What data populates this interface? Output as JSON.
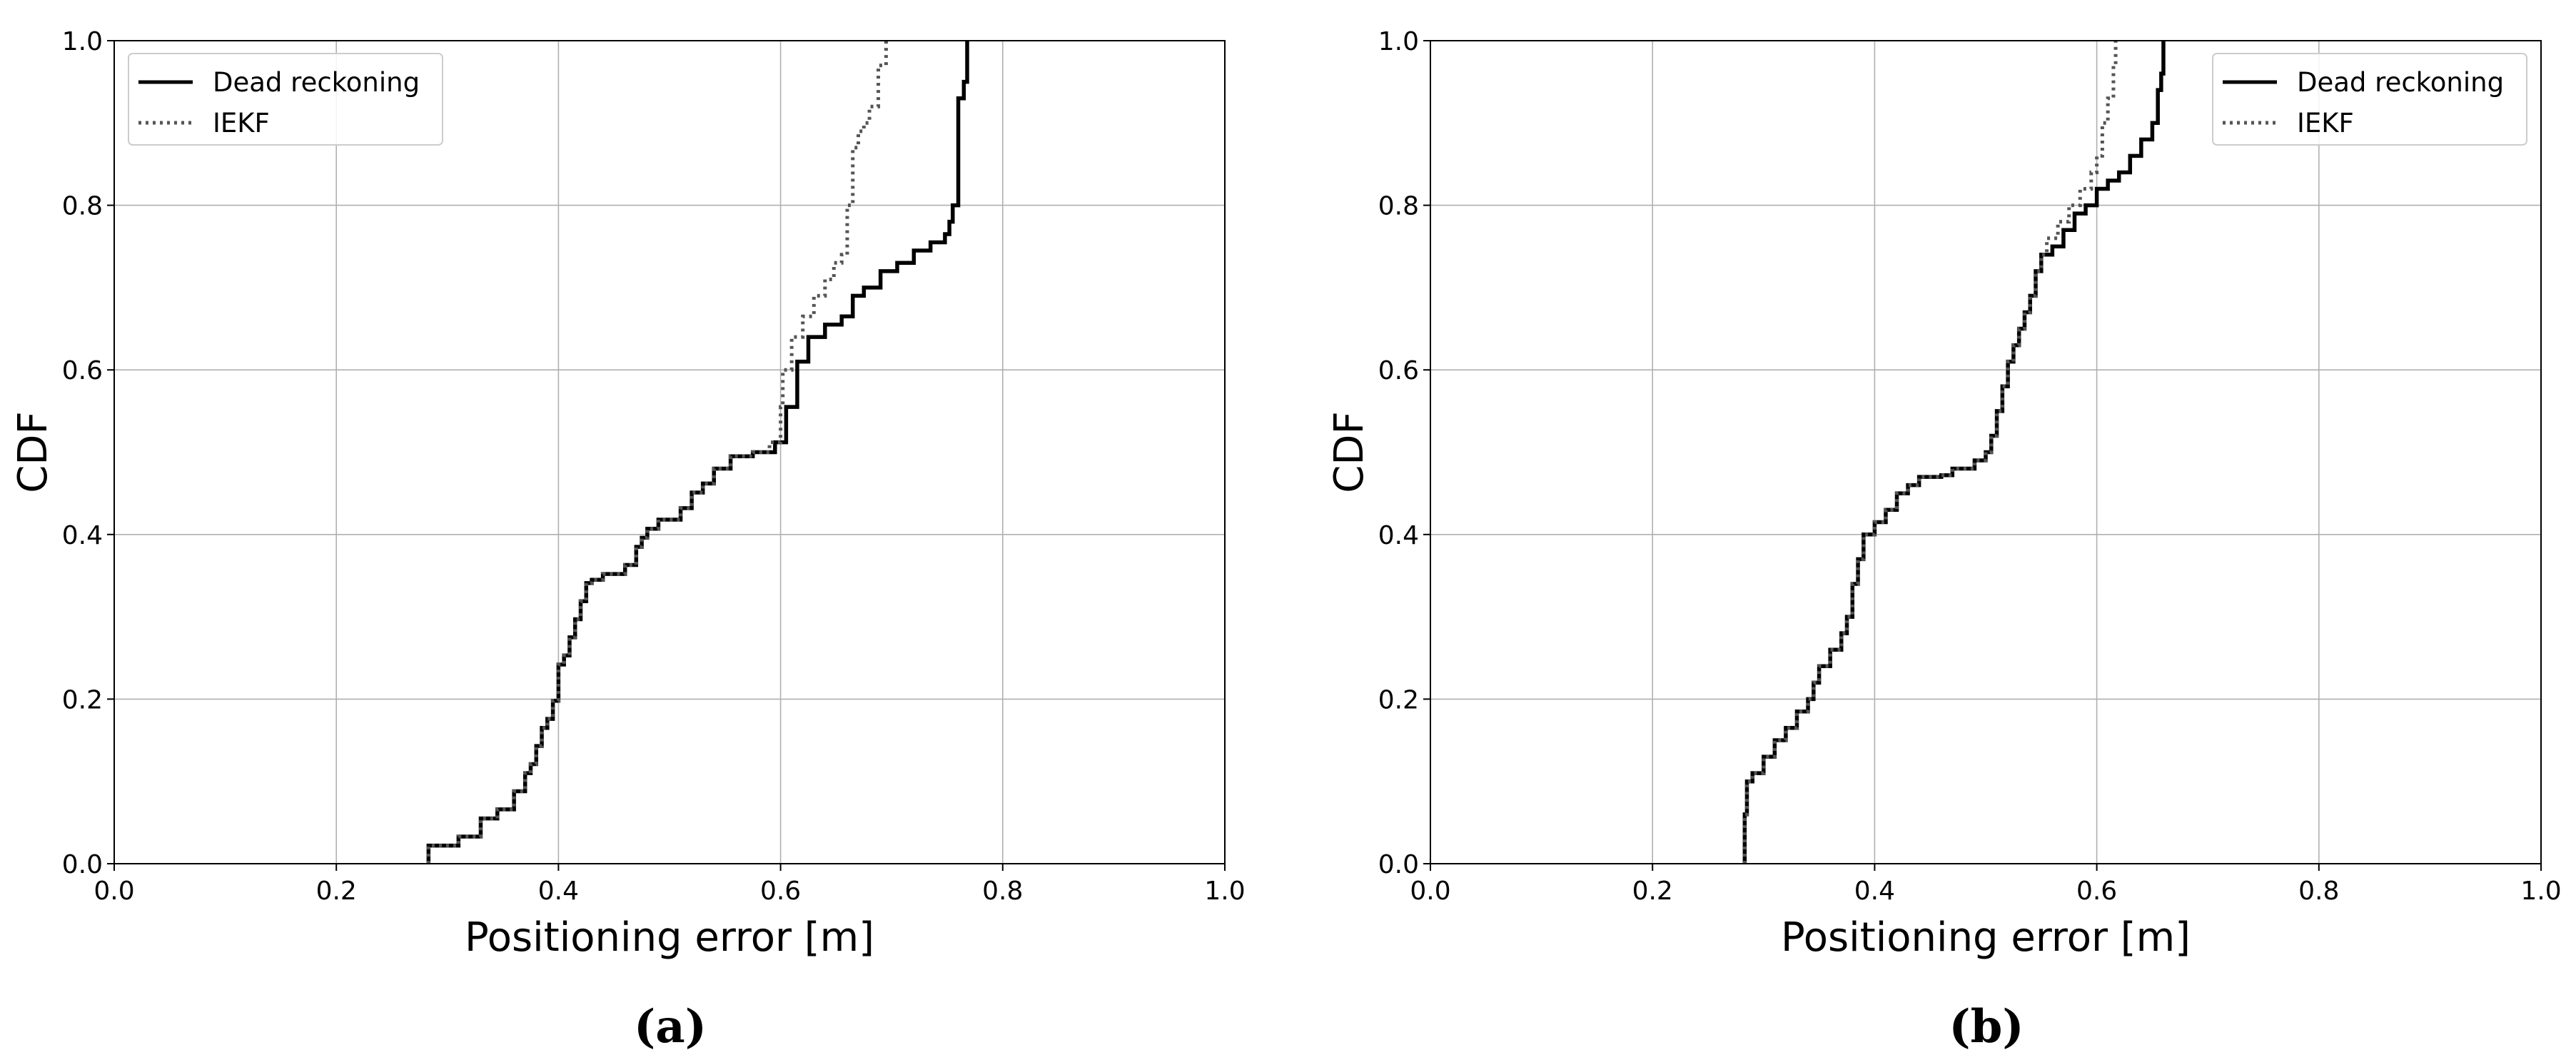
{
  "figure": {
    "panels": [
      {
        "id": "a",
        "label": "(a)"
      },
      {
        "id": "b",
        "label": "(b)"
      }
    ]
  },
  "chart_data": [
    {
      "type": "line",
      "panel_label": "(a)",
      "title": "",
      "xlabel": "Positioning error [m]",
      "ylabel": "CDF",
      "xlim": [
        0.0,
        1.0
      ],
      "ylim": [
        0.0,
        1.0
      ],
      "xticks": [
        "0.0",
        "0.2",
        "0.4",
        "0.6",
        "0.8",
        "1.0"
      ],
      "yticks": [
        "0.0",
        "0.2",
        "0.4",
        "0.6",
        "0.8",
        "1.0"
      ],
      "grid": true,
      "legend_position": "upper-left",
      "series": [
        {
          "name": "Dead reckoning",
          "style": "solid",
          "color": "#000000",
          "x": [
            0.283,
            0.283,
            0.31,
            0.33,
            0.345,
            0.36,
            0.37,
            0.375,
            0.38,
            0.385,
            0.39,
            0.395,
            0.4,
            0.405,
            0.41,
            0.415,
            0.42,
            0.425,
            0.43,
            0.44,
            0.46,
            0.47,
            0.475,
            0.48,
            0.49,
            0.51,
            0.52,
            0.53,
            0.54,
            0.555,
            0.575,
            0.595,
            0.605,
            0.615,
            0.625,
            0.64,
            0.655,
            0.665,
            0.675,
            0.69,
            0.705,
            0.72,
            0.735,
            0.748,
            0.752,
            0.755,
            0.76,
            0.765,
            0.768
          ],
          "y": [
            0.0,
            0.022,
            0.033,
            0.055,
            0.066,
            0.088,
            0.11,
            0.121,
            0.143,
            0.165,
            0.176,
            0.198,
            0.242,
            0.253,
            0.275,
            0.297,
            0.319,
            0.341,
            0.345,
            0.352,
            0.363,
            0.385,
            0.396,
            0.407,
            0.418,
            0.432,
            0.451,
            0.462,
            0.48,
            0.495,
            0.5,
            0.512,
            0.555,
            0.61,
            0.64,
            0.655,
            0.665,
            0.69,
            0.7,
            0.72,
            0.73,
            0.745,
            0.755,
            0.765,
            0.78,
            0.8,
            0.93,
            0.95,
            1.0
          ]
        },
        {
          "name": "IEKF",
          "style": "dotted",
          "color": "#555555",
          "x": [
            0.283,
            0.283,
            0.31,
            0.33,
            0.345,
            0.36,
            0.37,
            0.375,
            0.38,
            0.385,
            0.39,
            0.395,
            0.4,
            0.405,
            0.41,
            0.415,
            0.42,
            0.425,
            0.43,
            0.44,
            0.46,
            0.47,
            0.475,
            0.48,
            0.49,
            0.51,
            0.52,
            0.53,
            0.54,
            0.555,
            0.575,
            0.59,
            0.6,
            0.602,
            0.61,
            0.62,
            0.63,
            0.64,
            0.648,
            0.655,
            0.66,
            0.665,
            0.67,
            0.675,
            0.68,
            0.688,
            0.695
          ],
          "y": [
            0.0,
            0.022,
            0.033,
            0.055,
            0.066,
            0.088,
            0.11,
            0.121,
            0.143,
            0.165,
            0.176,
            0.198,
            0.242,
            0.253,
            0.275,
            0.297,
            0.319,
            0.341,
            0.345,
            0.352,
            0.363,
            0.385,
            0.396,
            0.407,
            0.418,
            0.432,
            0.451,
            0.462,
            0.48,
            0.495,
            0.5,
            0.512,
            0.555,
            0.6,
            0.64,
            0.665,
            0.69,
            0.71,
            0.73,
            0.74,
            0.8,
            0.87,
            0.89,
            0.9,
            0.92,
            0.97,
            1.0
          ]
        }
      ]
    },
    {
      "type": "line",
      "panel_label": "(b)",
      "title": "",
      "xlabel": "Positioning error [m]",
      "ylabel": "CDF",
      "xlim": [
        0.0,
        1.0
      ],
      "ylim": [
        0.0,
        1.0
      ],
      "xticks": [
        "0.0",
        "0.2",
        "0.4",
        "0.6",
        "0.8",
        "1.0"
      ],
      "yticks": [
        "0.0",
        "0.2",
        "0.4",
        "0.6",
        "0.8",
        "1.0"
      ],
      "grid": true,
      "legend_position": "upper-right",
      "series": [
        {
          "name": "Dead reckoning",
          "style": "solid",
          "color": "#000000",
          "x": [
            0.283,
            0.283,
            0.285,
            0.29,
            0.3,
            0.31,
            0.32,
            0.33,
            0.34,
            0.345,
            0.35,
            0.36,
            0.37,
            0.375,
            0.38,
            0.385,
            0.39,
            0.4,
            0.41,
            0.42,
            0.43,
            0.44,
            0.46,
            0.47,
            0.49,
            0.5,
            0.505,
            0.51,
            0.515,
            0.52,
            0.525,
            0.53,
            0.535,
            0.54,
            0.545,
            0.55,
            0.56,
            0.57,
            0.58,
            0.59,
            0.6,
            0.61,
            0.62,
            0.63,
            0.64,
            0.65,
            0.655,
            0.658,
            0.66
          ],
          "y": [
            0.0,
            0.06,
            0.1,
            0.11,
            0.13,
            0.15,
            0.165,
            0.185,
            0.2,
            0.22,
            0.24,
            0.26,
            0.28,
            0.3,
            0.34,
            0.37,
            0.4,
            0.415,
            0.43,
            0.45,
            0.46,
            0.47,
            0.472,
            0.48,
            0.49,
            0.5,
            0.52,
            0.55,
            0.58,
            0.61,
            0.63,
            0.65,
            0.67,
            0.69,
            0.72,
            0.74,
            0.75,
            0.77,
            0.79,
            0.8,
            0.82,
            0.83,
            0.84,
            0.86,
            0.88,
            0.9,
            0.94,
            0.96,
            1.0
          ]
        },
        {
          "name": "IEKF",
          "style": "dotted",
          "color": "#555555",
          "x": [
            0.283,
            0.283,
            0.285,
            0.29,
            0.3,
            0.31,
            0.32,
            0.33,
            0.34,
            0.345,
            0.35,
            0.36,
            0.37,
            0.375,
            0.38,
            0.385,
            0.39,
            0.4,
            0.41,
            0.42,
            0.43,
            0.44,
            0.46,
            0.47,
            0.49,
            0.5,
            0.505,
            0.51,
            0.515,
            0.52,
            0.525,
            0.53,
            0.535,
            0.54,
            0.545,
            0.55,
            0.555,
            0.565,
            0.575,
            0.585,
            0.595,
            0.6,
            0.605,
            0.61,
            0.615,
            0.617
          ],
          "y": [
            0.0,
            0.06,
            0.1,
            0.11,
            0.13,
            0.15,
            0.165,
            0.185,
            0.2,
            0.22,
            0.24,
            0.26,
            0.28,
            0.3,
            0.34,
            0.37,
            0.4,
            0.415,
            0.43,
            0.45,
            0.46,
            0.47,
            0.472,
            0.48,
            0.49,
            0.5,
            0.52,
            0.55,
            0.58,
            0.61,
            0.63,
            0.65,
            0.67,
            0.69,
            0.72,
            0.74,
            0.76,
            0.78,
            0.8,
            0.82,
            0.84,
            0.86,
            0.9,
            0.93,
            0.97,
            1.0
          ]
        }
      ]
    }
  ]
}
